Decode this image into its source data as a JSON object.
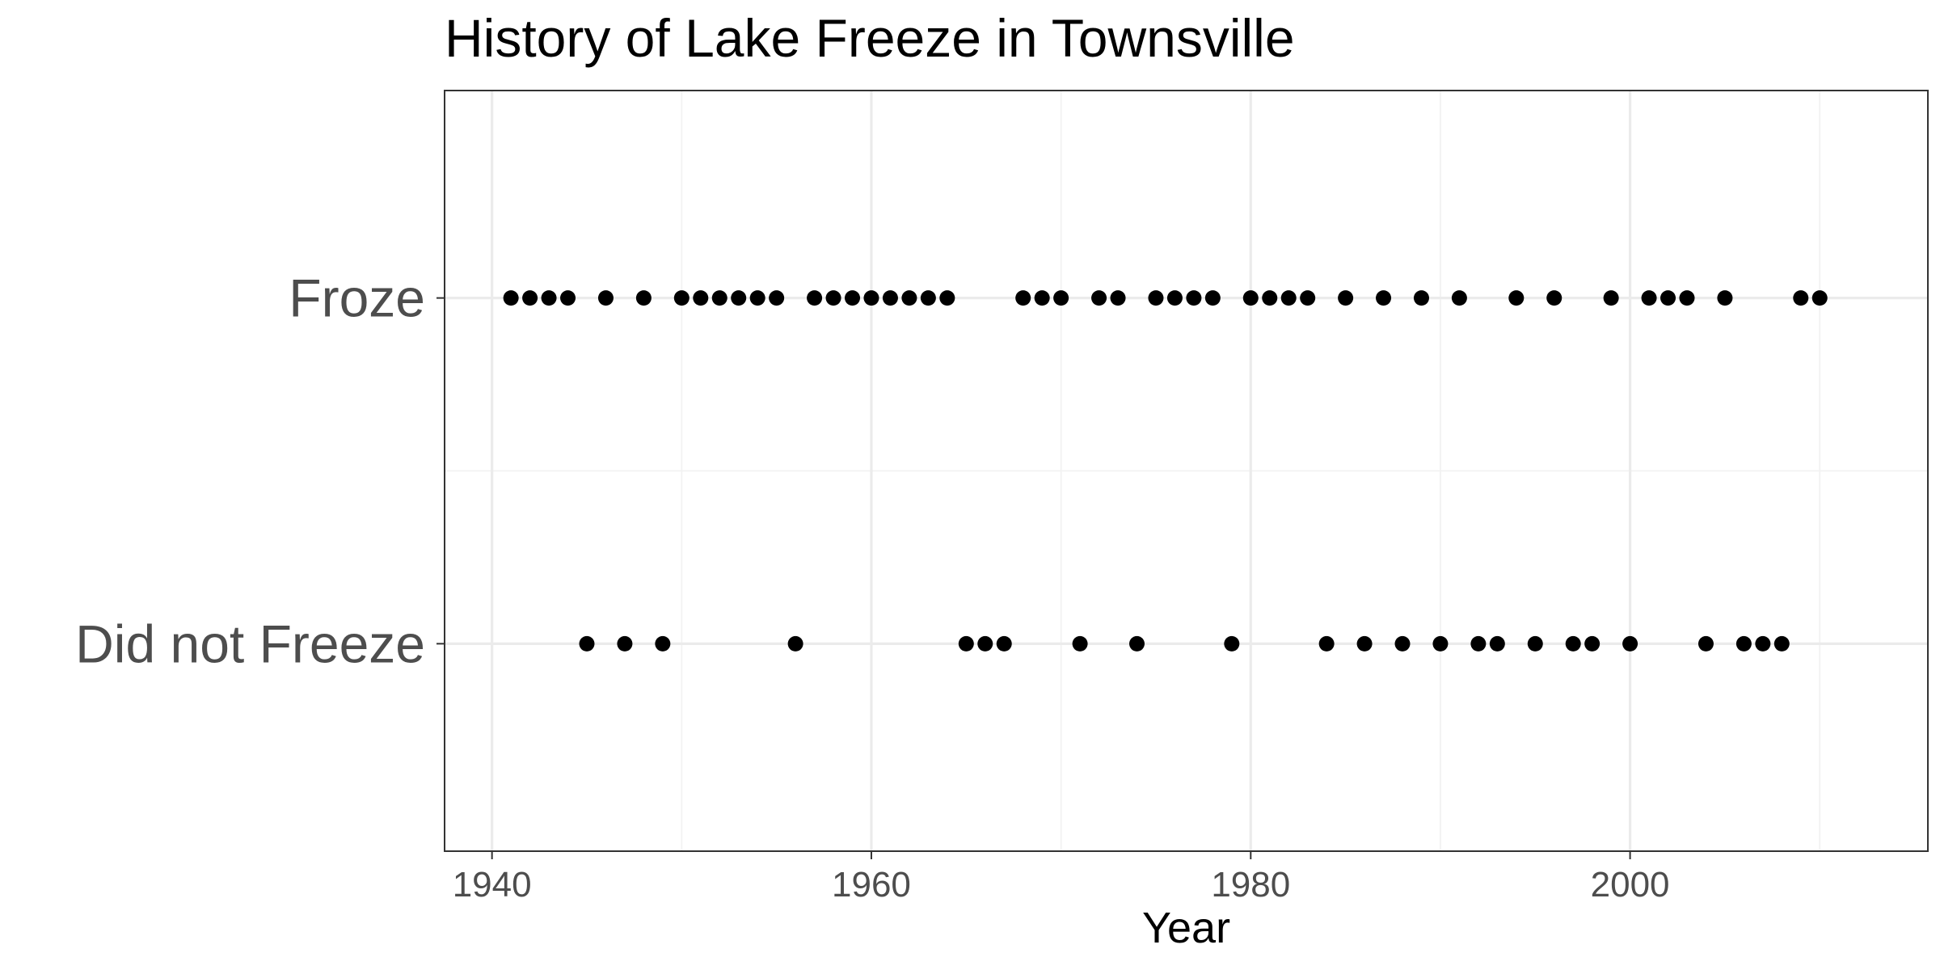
{
  "chart_data": {
    "type": "scatter",
    "title": "History of Lake Freeze in Townsville",
    "xlabel": "Year",
    "ylabel": "",
    "xlim": [
      1937.5,
      2015.7
    ],
    "x_ticks": [
      1940,
      1960,
      1980,
      2000
    ],
    "x_minor_ticks": [
      1950,
      1970,
      1990,
      2010
    ],
    "y_categories": [
      "Did not Freeze",
      "Froze"
    ],
    "grid": true,
    "point_color": "#000000",
    "series": [
      {
        "category": "Froze",
        "x": [
          1941,
          1942,
          1943,
          1944,
          1946,
          1948,
          1950,
          1951,
          1952,
          1953,
          1954,
          1955,
          1957,
          1958,
          1959,
          1960,
          1961,
          1962,
          1963,
          1964,
          1968,
          1969,
          1970,
          1972,
          1973,
          1975,
          1976,
          1977,
          1978,
          1980,
          1981,
          1982,
          1983,
          1985,
          1987,
          1989,
          1991,
          1994,
          1996,
          1999,
          2001,
          2002,
          2003,
          2005,
          2009,
          2010
        ]
      },
      {
        "category": "Did not Freeze",
        "x": [
          1945,
          1947,
          1949,
          1956,
          1965,
          1966,
          1967,
          1971,
          1974,
          1979,
          1984,
          1986,
          1988,
          1990,
          1992,
          1993,
          1995,
          1997,
          1998,
          2000,
          2004,
          2006,
          2007,
          2008
        ]
      }
    ]
  }
}
